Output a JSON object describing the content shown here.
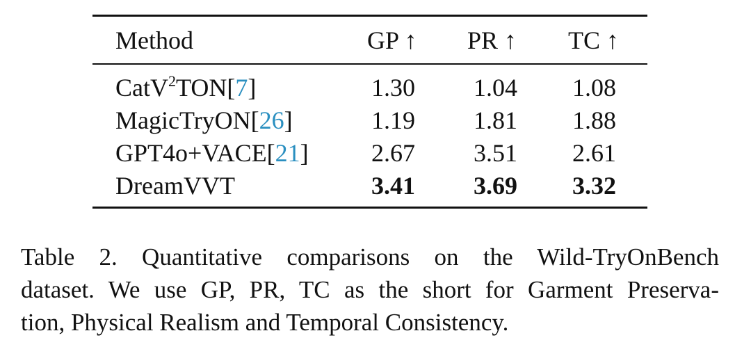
{
  "table": {
    "headers": {
      "method": "Method",
      "gp": "GP ↑",
      "pr": "PR ↑",
      "tc": "TC ↑"
    },
    "rows": [
      {
        "method_prefix": "CatV",
        "method_sup": "2",
        "method_suffix": "TON[",
        "cite": "7",
        "close": "]",
        "gp": "1.30",
        "pr": "1.04",
        "tc": "1.08"
      },
      {
        "method_prefix": "MagicTryON[",
        "cite": "26",
        "close": "]",
        "gp": "1.19",
        "pr": "1.81",
        "tc": "1.88"
      },
      {
        "method_prefix": "GPT4o+VACE[",
        "cite": "21",
        "close": "]",
        "gp": "2.67",
        "pr": "3.51",
        "tc": "2.61"
      },
      {
        "method_prefix": "DreamVVT",
        "gp": "3.41",
        "pr": "3.69",
        "tc": "3.32"
      }
    ]
  },
  "caption": {
    "line1": "Table 2.  Quantitative comparisons on the Wild-TryOnBench",
    "line2": "dataset. We use GP, PR, TC as the short for Garment Preserva-",
    "line3": "tion, Physical Realism and Temporal Consistency."
  }
}
